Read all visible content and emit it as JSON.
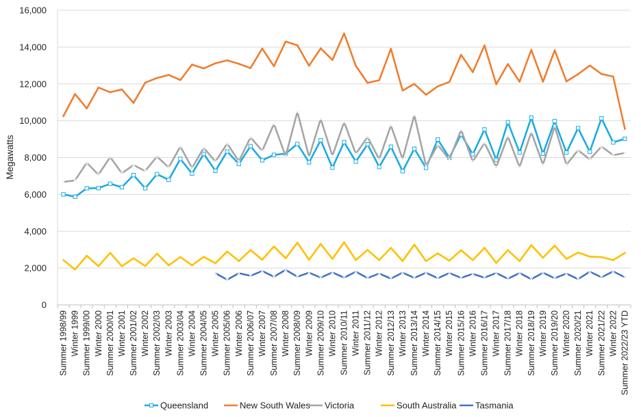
{
  "chart_data": {
    "type": "line",
    "ylabel": "Megawatts",
    "ylim": [
      0,
      16000
    ],
    "yticks": [
      0,
      2000,
      4000,
      6000,
      8000,
      10000,
      12000,
      14000,
      16000
    ],
    "ytick_labels": [
      "0",
      "2,000",
      "4,000",
      "6,000",
      "8,000",
      "10,000",
      "12,000",
      "14,000",
      "16,000"
    ],
    "grid": "horizontal",
    "legend_position": "bottom",
    "categories": [
      "Summer 1998/99",
      "Winter 1999",
      "Summer 1999/00",
      "Winter 2000",
      "Summer 2000/01",
      "Winter 2001",
      "Summer 2001/02",
      "Winter 2002",
      "Summer 2002/03",
      "Winter 2003",
      "Summer 2003/04",
      "Winter 2004",
      "Summer 2004/05",
      "Winter 2005",
      "Summer 2005/06",
      "Winter 2006",
      "Summer 2006/07",
      "Winter 2007",
      "Summer 2007/08",
      "Winter 2008",
      "Summer 2008/09",
      "Winter 2009",
      "Summer 2009/10",
      "Winter 2010",
      "Summer 2010/11",
      "Winter 2011",
      "Summer 2011/12",
      "Winter 2012",
      "Summer 2012/13",
      "Winter 2013",
      "Summer 2013/14",
      "Winter 2014",
      "Summer 2014/15",
      "Winter 2015",
      "Summer 2015/16",
      "Winter 2016",
      "Summer 2016/17",
      "Winter 2017",
      "Summer 2017/18",
      "Winter 2018",
      "Summer 2018/19",
      "Winter 2019",
      "Summer 2019/20",
      "Winter 2020",
      "Summer 2020/21",
      "Winter 2021",
      "Summer 2021/22",
      "Winter 2022",
      "Summer 2022/23 YTD"
    ],
    "xtick_labels": [
      "Summer 1998/99",
      "Winter 1999",
      "Summer 1999/00",
      "Winter 2000",
      "Summer 2000/01",
      "Winter 2001",
      "Summer 2001/02",
      "Winter 2002",
      "Summer 2002/03",
      "Winter 2003",
      "Summer 2003/04",
      "Winter 2004",
      "Summer 2004/05",
      "Winter 2005",
      "Summer 2005/06",
      "Winter 2006",
      "Summer 2006/07",
      "Winter 2007",
      "Summer 2007/08",
      "Winter 2008",
      "Summer 2008/09",
      "Winter 2009",
      "Summer 2009/10",
      "Winter 2010",
      "Summer 2010/11",
      "Winter 2011",
      "Summer 2011/12",
      "Winter 2012",
      "Summer 2012/13",
      "Winter 2013",
      "Summer 2013/14",
      "Winter 2014",
      "Summer 2014/15",
      "Winter 2015",
      "Summer 2015/16",
      "Winter 2016",
      "Summer 2016/17",
      "Winter 2017",
      "Summer 2017/18",
      "Winter 2018",
      "Summer 2018/19",
      "Winter 2019",
      "Summer 2019/20",
      "Winter 2020",
      "Summer 2020/21",
      "Winter 2021",
      "Summer 2021/22",
      "Winter 2022",
      "Summer 2022/23 YTD"
    ],
    "series": [
      {
        "name": "Queensland",
        "color": "#1AABE3",
        "marker": "square",
        "values": [
          6000,
          5870,
          6330,
          6340,
          6580,
          6390,
          7050,
          6330,
          7100,
          6790,
          7930,
          7130,
          8200,
          7280,
          8330,
          7650,
          8620,
          7850,
          8150,
          8210,
          8740,
          7740,
          8940,
          7450,
          8840,
          7780,
          8720,
          7490,
          8590,
          7260,
          8480,
          7440,
          8980,
          7990,
          9260,
          8180,
          9530,
          7880,
          9920,
          8270,
          10170,
          8210,
          9980,
          8270,
          9600,
          8320,
          10130,
          8820,
          9020
        ]
      },
      {
        "name": "New South Wales",
        "color": "#F07D2E",
        "marker": "none",
        "values": [
          10250,
          11450,
          10670,
          11800,
          11550,
          11700,
          10970,
          12070,
          12320,
          12490,
          12210,
          13050,
          12840,
          13120,
          13280,
          13090,
          12860,
          13920,
          12960,
          14300,
          14100,
          12990,
          13930,
          13300,
          14740,
          12980,
          12060,
          12200,
          13910,
          11640,
          12000,
          11410,
          11870,
          12110,
          13580,
          12640,
          14090,
          11980,
          13080,
          12120,
          13850,
          12120,
          13830,
          12140,
          12530,
          13000,
          12540,
          12400,
          9560
        ]
      },
      {
        "name": "Victoria",
        "color": "#A5A5A5",
        "marker": "x",
        "values": [
          6680,
          6760,
          7720,
          7070,
          8030,
          7150,
          7590,
          7270,
          8060,
          7460,
          8600,
          7430,
          8530,
          7780,
          8760,
          7800,
          9100,
          8360,
          9830,
          8070,
          10490,
          8030,
          10100,
          8090,
          9930,
          8200,
          9120,
          7910,
          9750,
          7920,
          10310,
          7550,
          8690,
          7890,
          9500,
          7780,
          8800,
          7480,
          9150,
          7480,
          9380,
          7610,
          9690,
          7610,
          8400,
          7900,
          8600,
          8130,
          8250
        ]
      },
      {
        "name": "South Australia",
        "color": "#FFC000",
        "marker": "none",
        "values": [
          2430,
          1920,
          2670,
          2100,
          2830,
          2100,
          2530,
          2110,
          2780,
          2150,
          2600,
          2150,
          2610,
          2260,
          2900,
          2380,
          2980,
          2450,
          3170,
          2530,
          3380,
          2450,
          3310,
          2500,
          3400,
          2430,
          2980,
          2430,
          3100,
          2380,
          3270,
          2380,
          2800,
          2400,
          2970,
          2430,
          3100,
          2280,
          2970,
          2380,
          3240,
          2560,
          3220,
          2500,
          2840,
          2620,
          2600,
          2430,
          2820
        ]
      },
      {
        "name": "Tasmania",
        "color": "#4472C4",
        "marker": "x",
        "values": [
          null,
          null,
          null,
          null,
          null,
          null,
          null,
          null,
          null,
          null,
          null,
          null,
          null,
          1720,
          1370,
          1720,
          1580,
          1840,
          1530,
          1900,
          1530,
          1750,
          1480,
          1760,
          1480,
          1800,
          1460,
          1700,
          1430,
          1750,
          1470,
          1740,
          1450,
          1730,
          1470,
          1680,
          1480,
          1730,
          1420,
          1730,
          1400,
          1740,
          1450,
          1700,
          1400,
          1800,
          1500,
          1820,
          1500
        ]
      }
    ]
  }
}
